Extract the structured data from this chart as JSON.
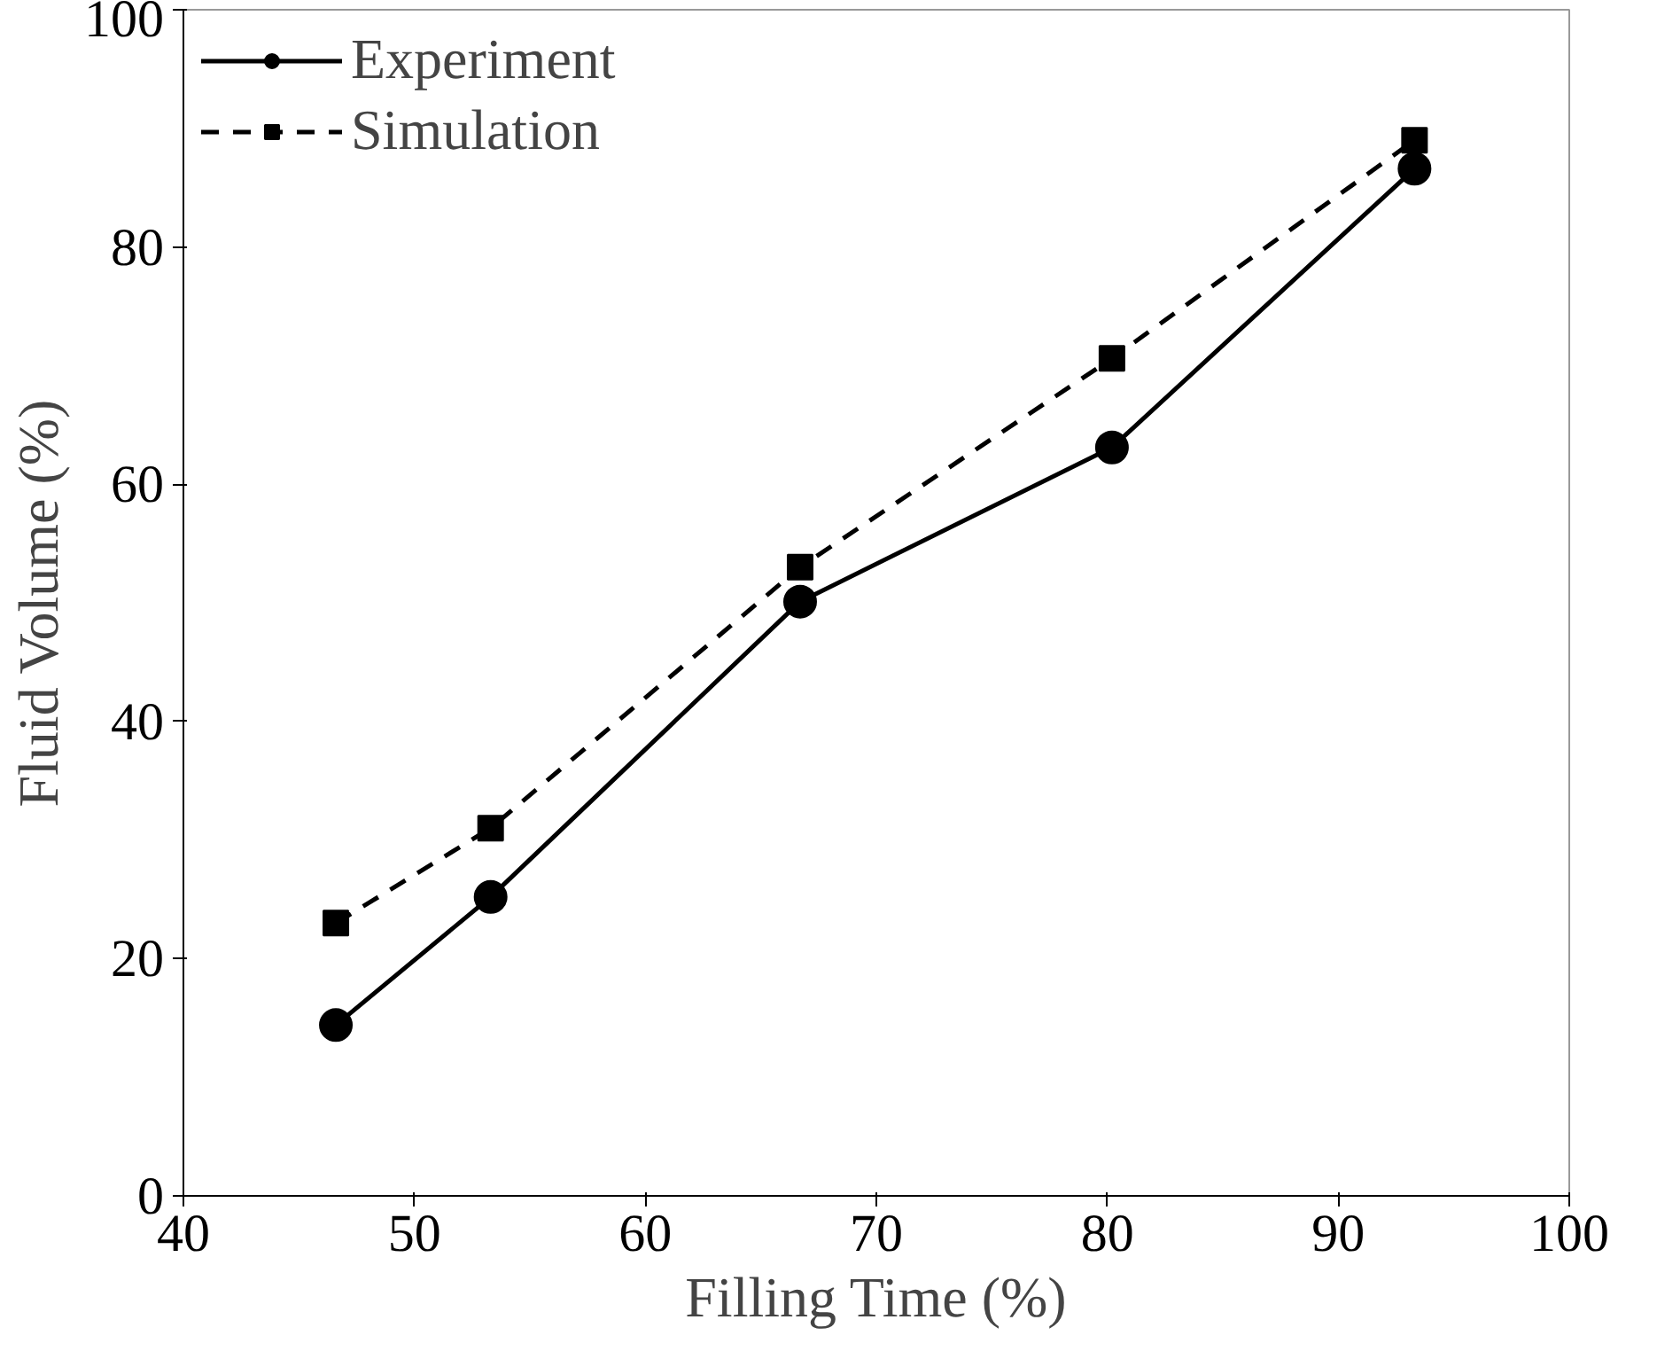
{
  "chart_data": {
    "type": "line",
    "xlabel": "Filling Time (%)",
    "ylabel": "Fluid Volume (%)",
    "x": [
      46.6,
      53.3,
      66.7,
      80.2,
      93.3
    ],
    "series": [
      {
        "name": "Experiment",
        "color": "#000000",
        "marker": "circle",
        "line_style": "solid",
        "values": [
          14.4,
          25.2,
          50.1,
          63.1,
          86.6
        ]
      },
      {
        "name": "Simulation",
        "color": "#000000",
        "marker": "square",
        "line_style": "dashed",
        "values": [
          23,
          31,
          53,
          70.6,
          89
        ]
      }
    ],
    "xlim": [
      40,
      100
    ],
    "ylim": [
      0,
      100
    ],
    "xticks": [
      40,
      50,
      60,
      70,
      80,
      90,
      100
    ],
    "yticks": [
      0,
      20,
      40,
      60,
      80,
      100
    ],
    "grid": false,
    "legend": "top left"
  }
}
